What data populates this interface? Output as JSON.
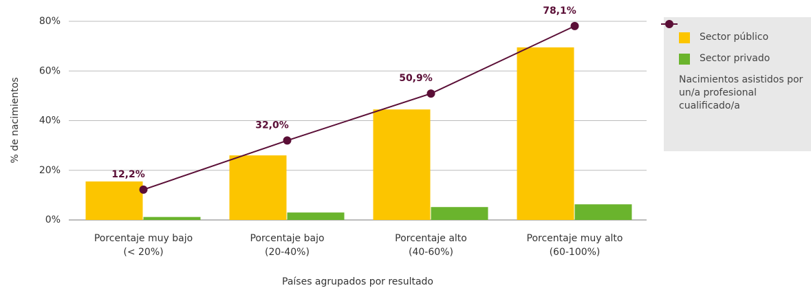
{
  "chart_data": {
    "type": "bar_line",
    "y_label": "% de nacimientos",
    "x_label": "Países agrupados por resultado",
    "categories": [
      [
        "Porcentaje muy bajo",
        "(< 20%)"
      ],
      [
        "Porcentaje bajo",
        "(20-40%)"
      ],
      [
        "Porcentaje alto",
        "(40-60%)"
      ],
      [
        "Porcentaje muy alto",
        "(60-100%)"
      ]
    ],
    "series": [
      {
        "name": "Sector público",
        "type": "bar",
        "color": "#fcc500",
        "values": [
          15.5,
          26,
          44.5,
          69.5
        ]
      },
      {
        "name": "Sector privado",
        "type": "bar",
        "color": "#6ab42d",
        "values": [
          1.2,
          3,
          5.2,
          6.3
        ]
      },
      {
        "name": "Nacimientos asistidos por un/a profesional cualificado/a",
        "type": "line",
        "color": "#5a0e36",
        "values": [
          12.2,
          32.0,
          50.9,
          78.1
        ],
        "value_labels": [
          "12,2%",
          "32,0%",
          "50,9%",
          "78,1%"
        ]
      }
    ],
    "ylim": [
      0,
      80
    ],
    "yticks": [
      {
        "value": 0,
        "label": "0%"
      },
      {
        "value": 20,
        "label": "20%"
      },
      {
        "value": 40,
        "label": "40%"
      },
      {
        "value": 60,
        "label": "60%"
      },
      {
        "value": 80,
        "label": "80%"
      }
    ],
    "grid": true,
    "legend": "right"
  }
}
